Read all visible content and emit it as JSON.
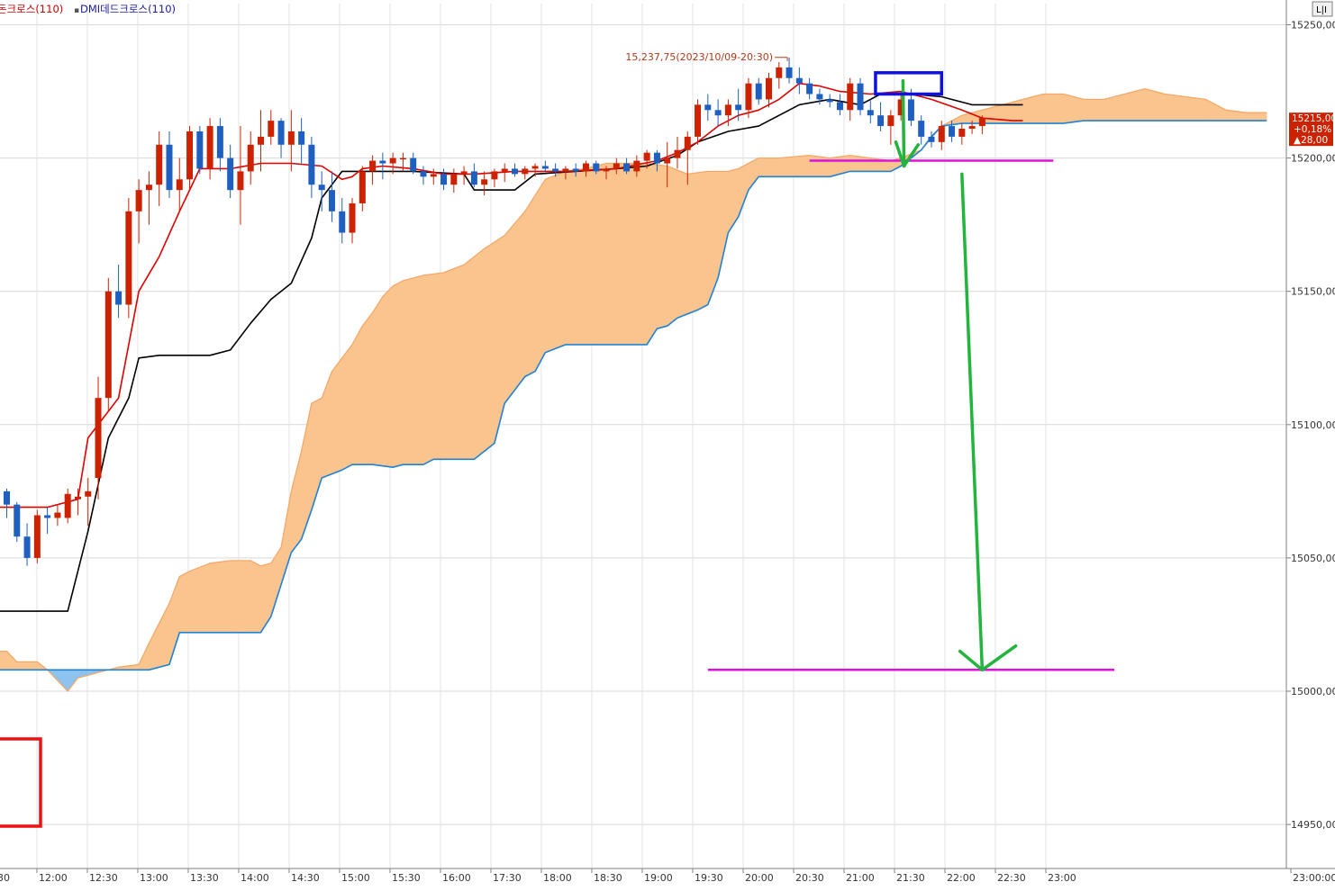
{
  "legend": {
    "item1": "돈크로스(110)",
    "item2": "DMI데드크로스(110)",
    "item1_color": "#cc0000",
    "item2_color": "#1a1aa0",
    "marker": "▪"
  },
  "corner_button": "L|I",
  "chart_data": {
    "type": "candlestick",
    "title": "",
    "ylim": [
      14925,
      15255
    ],
    "y_ticks": [
      {
        "v": 15250,
        "label": "15250,00"
      },
      {
        "v": 15200,
        "label": "15200,00"
      },
      {
        "v": 15150,
        "label": "15150,00"
      },
      {
        "v": 15100,
        "label": "15100,00"
      },
      {
        "v": 15050,
        "label": "15050,00"
      },
      {
        "v": 15000,
        "label": "15000,00"
      },
      {
        "v": 14950,
        "label": "14950,00"
      }
    ],
    "x_labels": [
      "30",
      "12:00",
      "12:30",
      "13:00",
      "13:30",
      "14:00",
      "14:30",
      "15:00",
      "15:30",
      "16:00",
      "17:30",
      "18:00",
      "18:30",
      "19:00",
      "19:30",
      "20:00",
      "20:30",
      "21:00",
      "21:30",
      "22:00",
      "22:30",
      "23:00",
      "23:00:00"
    ],
    "grid": true,
    "up_color": "#cc2200",
    "down_color": "#1f5fbf",
    "price_badge": {
      "price": "15215,00",
      "change_pct": "+0,18%",
      "change": "▲28,00",
      "value": 15215
    },
    "high_annotation": {
      "text": "15,237,75(2023/10/09-20:30)",
      "value": 15237.75
    },
    "candles": [
      [
        15075,
        15076,
        15065,
        15070
      ],
      [
        15070,
        15071,
        15056,
        15058
      ],
      [
        15058,
        15063,
        15047,
        15050
      ],
      [
        15050,
        15068,
        15048,
        15066
      ],
      [
        15066,
        15069,
        15059,
        15065
      ],
      [
        15065,
        15070,
        15062,
        15067
      ],
      [
        15065,
        15076,
        15063,
        15074
      ],
      [
        15072,
        15076,
        15066,
        15073
      ],
      [
        15073,
        15080,
        15062,
        15075
      ],
      [
        15080,
        15118,
        15072,
        15110
      ],
      [
        15110,
        15155,
        15105,
        15150
      ],
      [
        15150,
        15160,
        15140,
        15145
      ],
      [
        15145,
        15185,
        15140,
        15180
      ],
      [
        15180,
        15192,
        15168,
        15188
      ],
      [
        15188,
        15195,
        15175,
        15190
      ],
      [
        15190,
        15210,
        15182,
        15205
      ],
      [
        15205,
        15210,
        15185,
        15188
      ],
      [
        15188,
        15200,
        15180,
        15192
      ],
      [
        15192,
        15212,
        15188,
        15210
      ],
      [
        15210,
        15212,
        15194,
        15196
      ],
      [
        15196,
        15215,
        15192,
        15212
      ],
      [
        15212,
        15215,
        15195,
        15200
      ],
      [
        15200,
        15205,
        15185,
        15188
      ],
      [
        15188,
        15212,
        15175,
        15195
      ],
      [
        15195,
        15210,
        15190,
        15205
      ],
      [
        15205,
        15218,
        15195,
        15208
      ],
      [
        15208,
        15218,
        15205,
        15214
      ],
      [
        15214,
        15215,
        15200,
        15205
      ],
      [
        15205,
        15218,
        15195,
        15210
      ],
      [
        15210,
        15215,
        15198,
        15205
      ],
      [
        15205,
        15208,
        15185,
        15190
      ],
      [
        15190,
        15195,
        15180,
        15188
      ],
      [
        15188,
        15195,
        15176,
        15180
      ],
      [
        15180,
        15185,
        15168,
        15172
      ],
      [
        15172,
        15185,
        15168,
        15183
      ],
      [
        15183,
        15197,
        15180,
        15195
      ],
      [
        15195,
        15201,
        15190,
        15199
      ],
      [
        15199,
        15202,
        15192,
        15198
      ],
      [
        15198,
        15202,
        15194,
        15200
      ],
      [
        15200,
        15202,
        15195,
        15200
      ],
      [
        15200,
        15202,
        15194,
        15195
      ],
      [
        15195,
        15197,
        15190,
        15193
      ],
      [
        15193,
        15196,
        15190,
        15194
      ],
      [
        15194,
        15196,
        15188,
        15190
      ],
      [
        15190,
        15196,
        15187,
        15194
      ],
      [
        15194,
        15197,
        15190,
        15195
      ],
      [
        15195,
        15198,
        15189,
        15190
      ],
      [
        15190,
        15195,
        15186,
        15192
      ],
      [
        15192,
        15196,
        15189,
        15195
      ],
      [
        15195,
        15198,
        15191,
        15196
      ],
      [
        15196,
        15198,
        15193,
        15194
      ],
      [
        15194,
        15197,
        15192,
        15196
      ],
      [
        15196,
        15198,
        15193,
        15197
      ],
      [
        15197,
        15199,
        15195,
        15196
      ],
      [
        15196,
        15198,
        15193,
        15195
      ],
      [
        15195,
        15197,
        15192,
        15196
      ],
      [
        15196,
        15198,
        15193,
        15195
      ],
      [
        15195,
        15199,
        15193,
        15198
      ],
      [
        15198,
        15199,
        15194,
        15195
      ],
      [
        15195,
        15197,
        15192,
        15196
      ],
      [
        15196,
        15200,
        15194,
        15198
      ],
      [
        15198,
        15200,
        15194,
        15195
      ],
      [
        15195,
        15201,
        15193,
        15199
      ],
      [
        15199,
        15203,
        15196,
        15202
      ],
      [
        15202,
        15203,
        15195,
        15198
      ],
      [
        15198,
        15206,
        15189,
        15200
      ],
      [
        15200,
        15208,
        15196,
        15203
      ],
      [
        15203,
        15210,
        15190,
        15208
      ],
      [
        15208,
        15222,
        15205,
        15220
      ],
      [
        15220,
        15224,
        15214,
        15218
      ],
      [
        15218,
        15222,
        15212,
        15216
      ],
      [
        15216,
        15222,
        15212,
        15220
      ],
      [
        15220,
        15226,
        15214,
        15218
      ],
      [
        15218,
        15230,
        15215,
        15228
      ],
      [
        15228,
        15230,
        15220,
        15222
      ],
      [
        15222,
        15232,
        15219,
        15230
      ],
      [
        15230,
        15236,
        15226,
        15234
      ],
      [
        15234,
        15237.75,
        15228,
        15230
      ],
      [
        15230,
        15234,
        15224,
        15228
      ],
      [
        15228,
        15230,
        15222,
        15224
      ],
      [
        15224,
        15226,
        15220,
        15222
      ],
      [
        15222,
        15224,
        15219,
        15221
      ],
      [
        15221,
        15224,
        15216,
        15218
      ],
      [
        15218,
        15230,
        15214,
        15228
      ],
      [
        15228,
        15230,
        15216,
        15218
      ],
      [
        15218,
        15222,
        15213,
        15216
      ],
      [
        15216,
        15221,
        15210,
        15212
      ],
      [
        15212,
        15218,
        15205,
        15216
      ],
      [
        15216,
        15225,
        15214,
        15222
      ],
      [
        15222,
        15226,
        15212,
        15214
      ],
      [
        15214,
        15216,
        15205,
        15208
      ],
      [
        15208,
        15210,
        15204,
        15206
      ],
      [
        15206,
        15214,
        15203,
        15212
      ],
      [
        15212,
        15214,
        15206,
        15208
      ],
      [
        15208,
        15213,
        15205,
        15211
      ],
      [
        15211,
        15214,
        15209,
        15212
      ],
      [
        15212,
        15216,
        15209,
        15215
      ]
    ],
    "conversion_line": [
      [
        -2,
        15069
      ],
      [
        4,
        15069
      ],
      [
        7,
        15072
      ],
      [
        8,
        15095
      ],
      [
        11,
        15110
      ],
      [
        12,
        15130
      ],
      [
        13,
        15150
      ],
      [
        15,
        15163
      ],
      [
        17,
        15180
      ],
      [
        19,
        15196
      ],
      [
        22,
        15196
      ],
      [
        25,
        15198
      ],
      [
        28,
        15198
      ],
      [
        31,
        15197
      ],
      [
        33,
        15192
      ],
      [
        34,
        15193
      ],
      [
        35,
        15196
      ],
      [
        37,
        15197
      ],
      [
        40,
        15196
      ],
      [
        43,
        15194
      ],
      [
        46,
        15194
      ],
      [
        50,
        15195
      ],
      [
        55,
        15195
      ],
      [
        60,
        15196
      ],
      [
        64,
        15199
      ],
      [
        66,
        15202
      ],
      [
        68,
        15206
      ],
      [
        70,
        15212
      ],
      [
        72,
        15216
      ],
      [
        74,
        15218
      ],
      [
        76,
        15222
      ],
      [
        78,
        15228
      ],
      [
        80,
        15227
      ],
      [
        82,
        15225
      ],
      [
        85,
        15224
      ],
      [
        88,
        15225
      ],
      [
        91,
        15222
      ],
      [
        94,
        15218
      ],
      [
        96,
        15215
      ],
      [
        99,
        15214
      ],
      [
        100,
        15214
      ]
    ],
    "base_line": [
      [
        -2,
        15030
      ],
      [
        6,
        15030
      ],
      [
        8,
        15060
      ],
      [
        10,
        15095
      ],
      [
        12,
        15110
      ],
      [
        13,
        15125
      ],
      [
        15,
        15126
      ],
      [
        20,
        15126
      ],
      [
        22,
        15128
      ],
      [
        24,
        15138
      ],
      [
        26,
        15147
      ],
      [
        28,
        15153
      ],
      [
        30,
        15170
      ],
      [
        31,
        15185
      ],
      [
        33,
        15195
      ],
      [
        40,
        15195
      ],
      [
        45,
        15194
      ],
      [
        46,
        15188
      ],
      [
        50,
        15188
      ],
      [
        52,
        15194
      ],
      [
        60,
        15196
      ],
      [
        63,
        15197
      ],
      [
        66,
        15201
      ],
      [
        68,
        15206
      ],
      [
        71,
        15210
      ],
      [
        74,
        15212
      ],
      [
        78,
        15220
      ],
      [
        81,
        15222
      ],
      [
        84,
        15220
      ],
      [
        86,
        15224
      ],
      [
        89,
        15224
      ],
      [
        92,
        15223
      ],
      [
        95,
        15220
      ],
      [
        97,
        15220
      ],
      [
        100,
        15220
      ]
    ],
    "span_a": [
      [
        -2,
        15015
      ],
      [
        0,
        15015
      ],
      [
        1,
        15011
      ],
      [
        3,
        15011
      ],
      [
        4,
        15008
      ],
      [
        6,
        15000
      ],
      [
        7,
        15005
      ],
      [
        9,
        15007
      ],
      [
        11,
        15009
      ],
      [
        13,
        15010
      ],
      [
        14,
        15018
      ],
      [
        16,
        15033
      ],
      [
        17,
        15043
      ],
      [
        18,
        15045
      ],
      [
        20,
        15048
      ],
      [
        22,
        15049
      ],
      [
        24,
        15049
      ],
      [
        25,
        15047
      ],
      [
        26,
        15048
      ],
      [
        27,
        15054
      ],
      [
        28,
        15075
      ],
      [
        29,
        15090
      ],
      [
        30,
        15108
      ],
      [
        31,
        15110
      ],
      [
        32,
        15120
      ],
      [
        33,
        15125
      ],
      [
        34,
        15130
      ],
      [
        35,
        15137
      ],
      [
        36,
        15142
      ],
      [
        37,
        15148
      ],
      [
        38,
        15152
      ],
      [
        39,
        15154
      ],
      [
        41,
        15156
      ],
      [
        43,
        15157
      ],
      [
        45,
        15160
      ],
      [
        47,
        15166
      ],
      [
        49,
        15171
      ],
      [
        51,
        15180
      ],
      [
        53,
        15192
      ],
      [
        55,
        15195
      ],
      [
        57,
        15196
      ],
      [
        59,
        15198
      ],
      [
        61,
        15198
      ],
      [
        63,
        15198
      ],
      [
        65,
        15197
      ],
      [
        67,
        15194
      ],
      [
        69,
        15195
      ],
      [
        71,
        15195
      ],
      [
        72,
        15196
      ],
      [
        73,
        15198
      ],
      [
        74,
        15200
      ],
      [
        76,
        15200
      ],
      [
        79,
        15201
      ],
      [
        81,
        15200
      ],
      [
        83,
        15201
      ],
      [
        85,
        15200
      ],
      [
        87,
        15199
      ],
      [
        88,
        15200
      ],
      [
        90,
        15203
      ],
      [
        92,
        15212
      ],
      [
        94,
        15216
      ],
      [
        96,
        15218
      ],
      [
        98,
        15220
      ],
      [
        100,
        15222
      ],
      [
        102,
        15224
      ],
      [
        104,
        15224
      ],
      [
        106,
        15222
      ],
      [
        108,
        15222
      ],
      [
        110,
        15224
      ],
      [
        112,
        15226
      ],
      [
        114,
        15224
      ],
      [
        116,
        15223
      ],
      [
        118,
        15222
      ],
      [
        120,
        15218
      ],
      [
        122,
        15217
      ],
      [
        124,
        15217
      ]
    ],
    "span_b": [
      [
        -2,
        15008
      ],
      [
        0,
        15008
      ],
      [
        6,
        15008
      ],
      [
        8,
        15008
      ],
      [
        10,
        15008
      ],
      [
        12,
        15008
      ],
      [
        14,
        15008
      ],
      [
        16,
        15010
      ],
      [
        17,
        15022
      ],
      [
        19,
        15022
      ],
      [
        24,
        15022
      ],
      [
        25,
        15022
      ],
      [
        26,
        15028
      ],
      [
        27,
        15040
      ],
      [
        28,
        15052
      ],
      [
        29,
        15057
      ],
      [
        30,
        15068
      ],
      [
        31,
        15080
      ],
      [
        33,
        15083
      ],
      [
        34,
        15085
      ],
      [
        36,
        15085
      ],
      [
        38,
        15084
      ],
      [
        39,
        15085
      ],
      [
        41,
        15085
      ],
      [
        42,
        15087
      ],
      [
        44,
        15087
      ],
      [
        46,
        15087
      ],
      [
        48,
        15093
      ],
      [
        49,
        15108
      ],
      [
        51,
        15118
      ],
      [
        52,
        15120
      ],
      [
        53,
        15127
      ],
      [
        55,
        15130
      ],
      [
        57,
        15130
      ],
      [
        59,
        15130
      ],
      [
        61,
        15130
      ],
      [
        63,
        15130
      ],
      [
        64,
        15136
      ],
      [
        65,
        15137
      ],
      [
        66,
        15140
      ],
      [
        68,
        15143
      ],
      [
        69,
        15145
      ],
      [
        70,
        15155
      ],
      [
        71,
        15172
      ],
      [
        72,
        15178
      ],
      [
        73,
        15188
      ],
      [
        74,
        15193
      ],
      [
        76,
        15193
      ],
      [
        79,
        15193
      ],
      [
        81,
        15193
      ],
      [
        83,
        15195
      ],
      [
        85,
        15195
      ],
      [
        87,
        15195
      ],
      [
        88,
        15197
      ],
      [
        90,
        15203
      ],
      [
        91,
        15208
      ],
      [
        92,
        15212
      ],
      [
        94,
        15213
      ],
      [
        100,
        15213
      ],
      [
        104,
        15213
      ],
      [
        106,
        15214
      ],
      [
        110,
        15214
      ],
      [
        114,
        15214
      ],
      [
        118,
        15214
      ],
      [
        122,
        15214
      ],
      [
        124,
        15214
      ]
    ],
    "magenta_lines": [
      {
        "x1": 79,
        "x2": 103,
        "y": 15199
      },
      {
        "x1": 69,
        "x2": 109,
        "y": 15008
      }
    ],
    "green_arrows": [
      {
        "x1": 88.2,
        "y1": 15229,
        "x2": 88.3,
        "y2": 15197,
        "wing_dx1": -0.8,
        "wing_dy1": 15206,
        "wing_dx2": 1.4,
        "wing_dy2": 15205
      },
      {
        "x1": 94,
        "y1": 15194,
        "x2": 96,
        "y2": 15008,
        "wing_dx1": -2.2,
        "wing_dy1": 15015,
        "wing_dx2": 3.3,
        "wing_dy2": 15017
      }
    ],
    "blue_box": {
      "x1": 85.5,
      "x2": 92,
      "y1": 15232,
      "y2": 15224
    },
    "red_box_note": true
  }
}
